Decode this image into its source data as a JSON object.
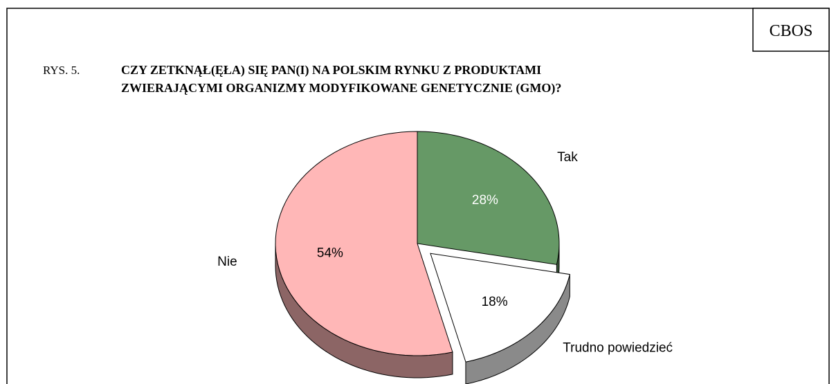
{
  "brand": "CBOS",
  "chart_data": {
    "type": "pie",
    "label": "RYS. 5.",
    "title": [
      "CZY ZETKNĄŁ(ĘŁA) SIĘ PAN(I) NA POLSKIM RYNKU Z PRODUKTAMI",
      "ZWIERAJĄCYMI ORGANIZMY MODYFIKOWANE GENETYCZNIE (GMO)?"
    ],
    "categories": [
      "Tak",
      "Trudno powiedzieć",
      "Nie"
    ],
    "values": [
      28,
      18,
      54
    ],
    "value_labels": [
      "28%",
      "18%",
      "54%"
    ],
    "colors": [
      "#669966",
      "#ffffff",
      "#ffb7b7"
    ],
    "exploded": [
      false,
      true,
      false
    ]
  }
}
